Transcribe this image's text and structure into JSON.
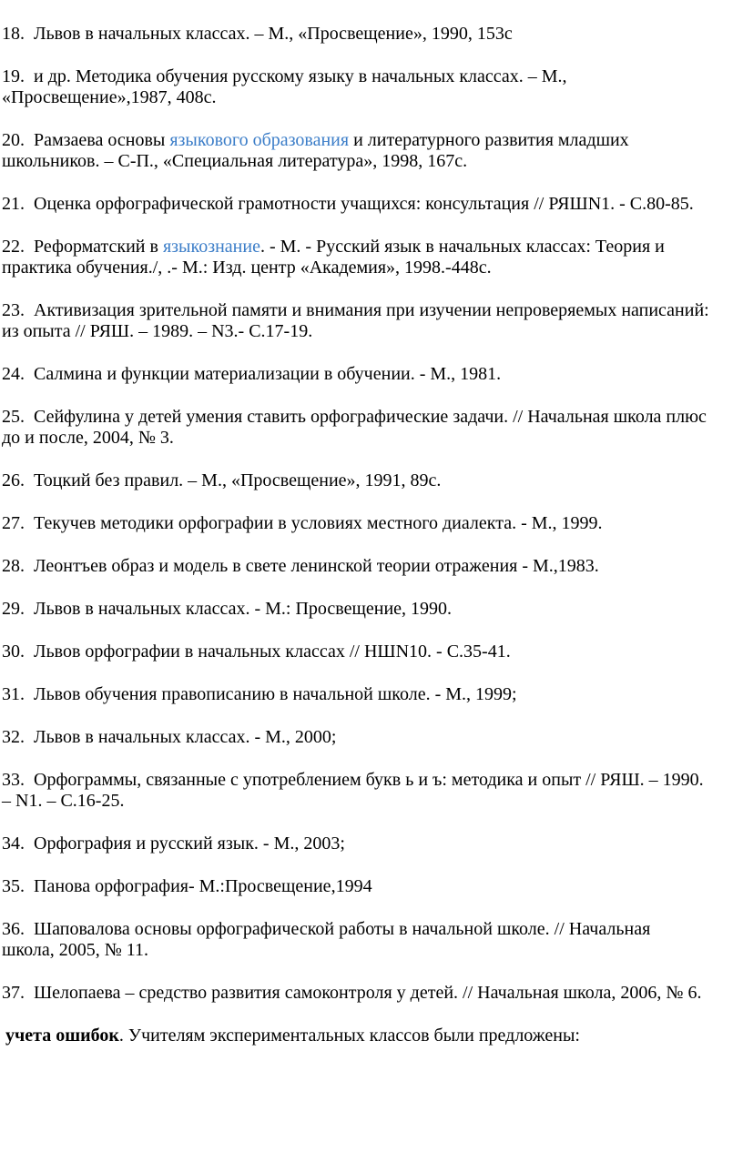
{
  "link_color": "#3b7dc8",
  "items": [
    {
      "num": "18.",
      "lines": [
        [
          {
            "text": "Львов в начальных классах. – М., «Просвещение», 1990, 153с"
          }
        ]
      ]
    },
    {
      "num": "19.",
      "lines": [
        [
          {
            "text": "и др. Методика обучения русскому языку в начальных классах. – М.,"
          }
        ],
        [
          {
            "text": "«Просвещение»,1987, 408с."
          }
        ]
      ]
    },
    {
      "num": "20.",
      "lines": [
        [
          {
            "text": "Рамзаева основы "
          },
          {
            "text": "языкового образования",
            "link": true
          },
          {
            "text": " и литературного развития младших"
          }
        ],
        [
          {
            "text": "школьников. – С-П., «Специальная литература», 1998, 167с."
          }
        ]
      ]
    },
    {
      "num": "21.",
      "lines": [
        [
          {
            "text": "Оценка орфографической грамотности учащихся: консультация // РЯШN1. - С.80-85."
          }
        ]
      ]
    },
    {
      "num": "22.",
      "lines": [
        [
          {
            "text": "Реформатский в "
          },
          {
            "text": "языкознание",
            "link": true
          },
          {
            "text": ". - М. - Русский язык в начальных классах: Теория и"
          }
        ],
        [
          {
            "text": "практика обучения./, .- М.: Изд. центр «Академия», 1998.-448с."
          }
        ]
      ]
    },
    {
      "num": "23.",
      "lines": [
        [
          {
            "text": "Активизация зрительной памяти и внимания при изучении непроверяемых написаний:"
          }
        ],
        [
          {
            "text": "из опыта // РЯШ. – 1989. – N3.- С.17-19."
          }
        ]
      ]
    },
    {
      "num": "24.",
      "lines": [
        [
          {
            "text": "Салмина и функции материализации в обучении. - М., 1981."
          }
        ]
      ]
    },
    {
      "num": "25.",
      "lines": [
        [
          {
            "text": "Сейфулина у детей умения ставить орфографические задачи. // Начальная школа плюс"
          }
        ],
        [
          {
            "text": "до и после, 2004, № 3."
          }
        ]
      ]
    },
    {
      "num": "26.",
      "lines": [
        [
          {
            "text": "Тоцкий без правил. – М., «Просвещение», 1991, 89с."
          }
        ]
      ]
    },
    {
      "num": "27.",
      "lines": [
        [
          {
            "text": "Текучев методики орфографии в условиях местного диалекта. - М., 1999."
          }
        ]
      ]
    },
    {
      "num": "28.",
      "lines": [
        [
          {
            "text": "Леонтъев образ и модель в свете ленинской теории отражения - М.,1983."
          }
        ]
      ]
    },
    {
      "num": "29.",
      "lines": [
        [
          {
            "text": "Львов в начальных классах. - М.: Просвещение, 1990."
          }
        ]
      ]
    },
    {
      "num": "30.",
      "lines": [
        [
          {
            "text": "Львов орфографии в начальных классах // НШN10. - С.35-41."
          }
        ]
      ]
    },
    {
      "num": "31.",
      "lines": [
        [
          {
            "text": "Львов обучения правописанию в начальной школе. - М., 1999;"
          }
        ]
      ]
    },
    {
      "num": "32.",
      "lines": [
        [
          {
            "text": "Львов в начальных классах. - М., 2000;"
          }
        ]
      ]
    },
    {
      "num": "33.",
      "lines": [
        [
          {
            "text": "Орфограммы, связанные с употреблением букв ь и ъ: методика и опыт // РЯШ. – 1990."
          }
        ],
        [
          {
            "text": "– N1. – С.16-25."
          }
        ]
      ]
    },
    {
      "num": "34.",
      "lines": [
        [
          {
            "text": "Орфография и русский язык. - М., 2003;"
          }
        ]
      ]
    },
    {
      "num": "35.",
      "lines": [
        [
          {
            "text": "Панова орфография- М.:Просвещение,1994"
          }
        ]
      ]
    },
    {
      "num": "36.",
      "lines": [
        [
          {
            "text": "Шаповалова основы орфографической работы в начальной школе. // Начальная"
          }
        ],
        [
          {
            "text": "школа, 2005, № 11."
          }
        ]
      ]
    },
    {
      "num": "37.",
      "lines": [
        [
          {
            "text": "Шелопаева – средство развития самоконтроля у детей. // Начальная школа, 2006, № 6."
          }
        ]
      ]
    }
  ],
  "tail": {
    "bold": "учета ошибок",
    "rest": ". Учителям экспериментальных классов были предложены:"
  }
}
